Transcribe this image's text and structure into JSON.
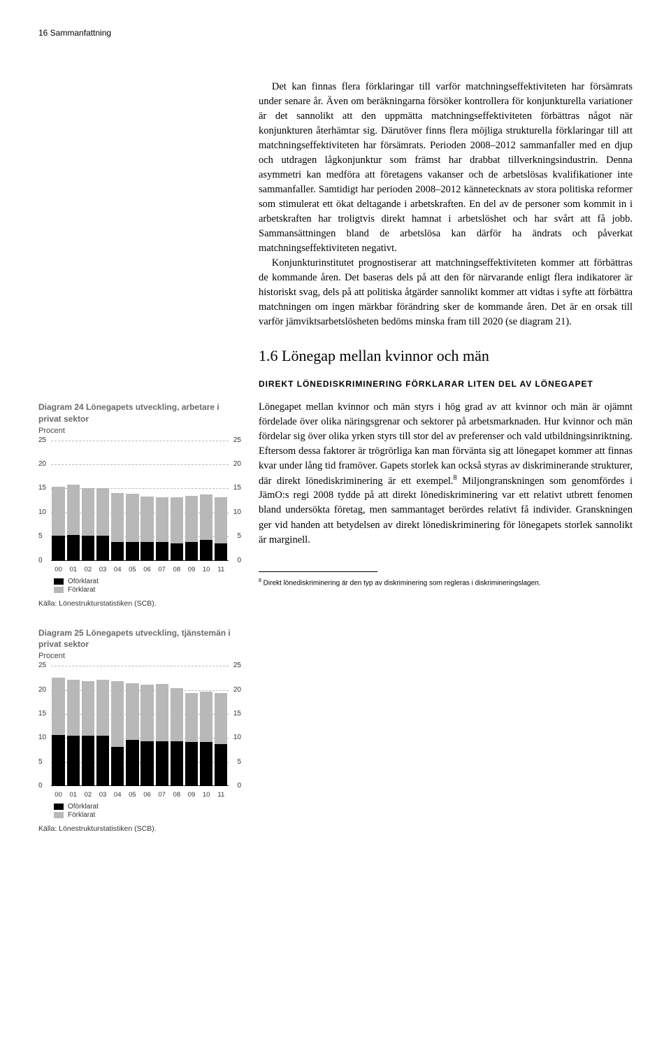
{
  "page_header": "16   Sammanfattning",
  "body": {
    "p1": "Det kan finnas flera förklaringar till varför matchningseffektiviteten har försämrats under senare år. Även om beräkningarna försöker kontrollera för konjunkturella variationer är det sannolikt att den uppmätta matchningseffektiviteten förbättras något när konjunkturen återhämtar sig. Därutöver finns flera möjliga strukturella förklaringar till att matchningseffektiviteten har försämrats. Perioden 2008–2012 sammanfaller med en djup och utdragen lågkonjunktur som främst har drabbat tillverkningsindustrin. Denna asymmetri kan medföra att företagens vakanser och de arbetslösas kvalifikationer inte sammanfaller. Samtidigt har perioden 2008–2012 kännetecknats av stora politiska reformer som stimulerat ett ökat deltagande i arbetskraften. En del av de personer som kommit in i arbetskraften har troligtvis direkt hamnat i arbetslöshet och har svårt att få jobb. Sammansättningen bland de arbetslösa kan därför ha ändrats och påverkat matchningseffektiviteten negativt.",
    "p2": "Konjunkturinstitutet prognostiserar att matchningseffektiviteten kommer att förbättras de kommande åren. Det baseras dels på att den för närvarande enligt flera indikatorer är historiskt svag, dels på att politiska åtgärder sannolikt kommer att vidtas i syfte att förbättra matchningen om ingen märkbar förändring sker de kommande åren. Det är en orsak till varför jämviktsarbetslösheten bedöms minska fram till 2020 (se diagram 21).",
    "section_heading": "1.6 Lönegap mellan kvinnor och män",
    "subsection_heading": "DIREKT LÖNEDISKRIMINERING FÖRKLARAR LITEN DEL AV LÖNEGAPET",
    "p3a": "Lönegapet mellan kvinnor och män styrs i hög grad av att kvinnor och män är ojämnt fördelade över olika näringsgrenar och sektorer på arbetsmarknaden. Hur kvinnor och män fördelar sig över olika yrken styrs till stor del av preferenser och vald utbildningsinriktning. Eftersom dessa faktorer är trögrörliga kan man förvänta sig att lönegapet kommer att finnas kvar under lång tid framöver. Gapets storlek kan också styras av diskriminerande strukturer, där direkt lönediskriminering är ett exempel.",
    "p3b": " Miljongranskningen som genomfördes i JämO:s regi 2008 tydde på att direkt lönediskriminering var ett relativt utbrett fenomen bland undersökta företag, men sammantaget berördes relativt få individer. Granskningen ger vid handen att betydelsen av direkt lönediskriminering för lönegapets storlek sannolikt är marginell.",
    "footnote_num": "8",
    "footnote": " Direkt lönediskriminering är den typ av diskriminering som regleras i diskrimineringslagen."
  },
  "chart24": {
    "type": "stacked-bar",
    "title": "Diagram 24 Lönegapets utveckling, arbetare i privat sektor",
    "subtitle": "Procent",
    "ylim": [
      0,
      25
    ],
    "ytick_step": 5,
    "yticks": [
      0,
      5,
      10,
      15,
      20,
      25
    ],
    "categories": [
      "00",
      "01",
      "02",
      "03",
      "04",
      "05",
      "06",
      "07",
      "08",
      "09",
      "10",
      "11"
    ],
    "series": {
      "Oförklarat": [
        5.2,
        5.3,
        5.2,
        5.2,
        3.8,
        3.9,
        3.8,
        3.8,
        3.6,
        3.8,
        4.3,
        3.6
      ],
      "Förklarat": [
        10.2,
        10.5,
        9.9,
        9.8,
        10.3,
        10.0,
        9.5,
        9.4,
        9.6,
        9.6,
        9.4,
        9.6
      ]
    },
    "colors": {
      "Oförklarat": "#000000",
      "Förklarat": "#b8b8b8"
    },
    "grid_color": "#bababa",
    "background_color": "#ffffff",
    "legend_items": [
      "Oförklarat",
      "Förklarat"
    ],
    "source": "Källa: Lönestrukturstatistiken (SCB)."
  },
  "chart25": {
    "type": "stacked-bar",
    "title": "Diagram 25 Lönegapets utveckling, tjänstemän i privat sektor",
    "subtitle": "Procent",
    "ylim": [
      0,
      25
    ],
    "ytick_step": 5,
    "yticks": [
      0,
      5,
      10,
      15,
      20,
      25
    ],
    "categories": [
      "00",
      "01",
      "02",
      "03",
      "04",
      "05",
      "06",
      "07",
      "08",
      "09",
      "10",
      "11"
    ],
    "series": {
      "Oförklarat": [
        10.6,
        10.5,
        10.5,
        10.5,
        8.2,
        9.6,
        9.4,
        9.3,
        9.4,
        9.2,
        9.2,
        8.8
      ],
      "Förklarat": [
        12.0,
        11.6,
        11.4,
        11.6,
        13.6,
        11.8,
        11.7,
        11.9,
        11.0,
        10.2,
        10.4,
        10.6
      ]
    },
    "colors": {
      "Oförklarat": "#000000",
      "Förklarat": "#b8b8b8"
    },
    "grid_color": "#bababa",
    "background_color": "#ffffff",
    "legend_items": [
      "Oförklarat",
      "Förklarat"
    ],
    "source": "Källa: Lönestrukturstatistiken (SCB)."
  }
}
